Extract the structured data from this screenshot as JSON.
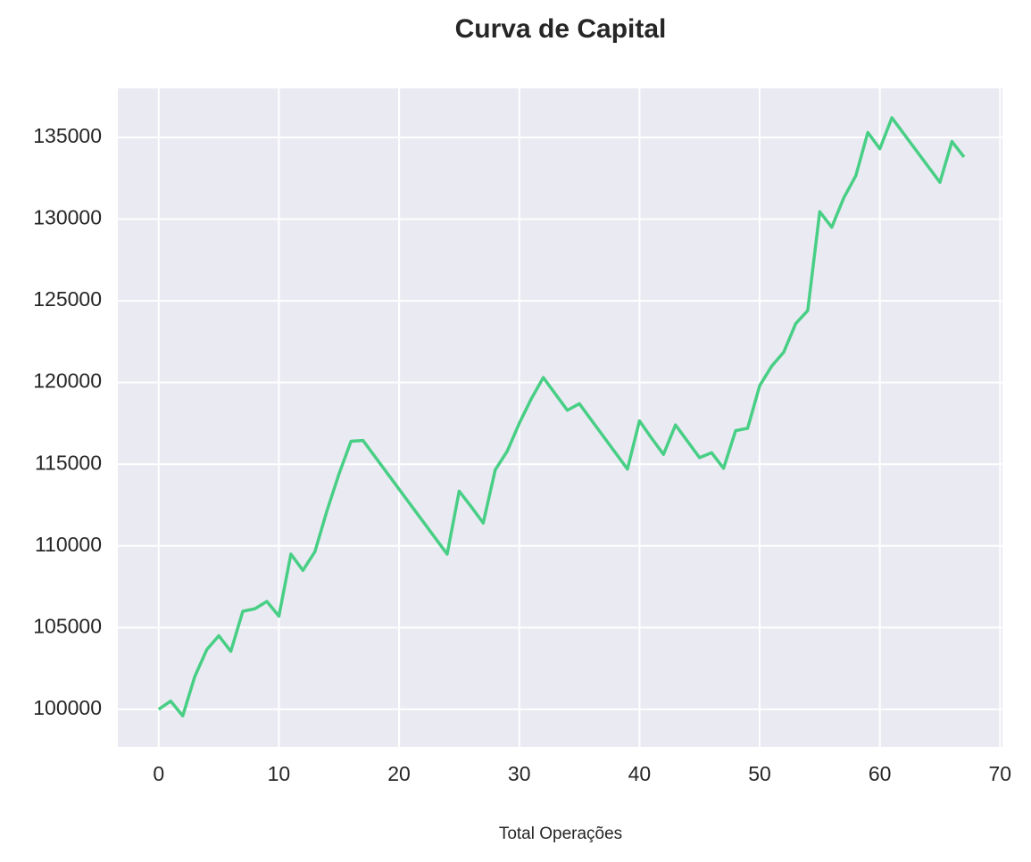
{
  "chart_data": {
    "type": "line",
    "title": "Curva de Capital",
    "x_label": "Total Operações",
    "x": [
      0,
      1,
      2,
      3,
      4,
      5,
      6,
      7,
      8,
      9,
      10,
      11,
      12,
      13,
      14,
      15,
      16,
      17,
      24,
      25,
      26,
      27,
      28,
      29,
      30,
      31,
      32,
      33,
      34,
      35,
      39,
      40,
      41,
      42,
      43,
      44,
      45,
      46,
      47,
      48,
      49,
      50,
      51,
      52,
      53,
      54,
      55,
      56,
      57,
      58,
      59,
      60,
      61,
      65,
      66,
      67
    ],
    "values": [
      100000,
      100500,
      99600,
      102000,
      103650,
      104500,
      103550,
      106000,
      106150,
      106600,
      105700,
      109500,
      108500,
      109650,
      112150,
      114400,
      116400,
      116450,
      109500,
      113350,
      112400,
      111400,
      114650,
      115800,
      117500,
      119000,
      120300,
      119300,
      118300,
      118700,
      114700,
      117650,
      116600,
      115600,
      117400,
      116400,
      115400,
      115700,
      114750,
      117050,
      117200,
      119800,
      121000,
      121850,
      123600,
      124400,
      130450,
      129500,
      131300,
      132650,
      135300,
      134300,
      136200,
      132250,
      134750,
      133800
    ],
    "color": "#48cf85",
    "xlim": [
      -3.4,
      70.2
    ],
    "xticks": [
      0,
      10,
      20,
      30,
      40,
      50,
      60,
      70
    ],
    "ylim": [
      97700,
      138000
    ],
    "yticks": [
      100000,
      105000,
      110000,
      115000,
      120000,
      125000,
      130000,
      135000
    ],
    "grid": true
  }
}
